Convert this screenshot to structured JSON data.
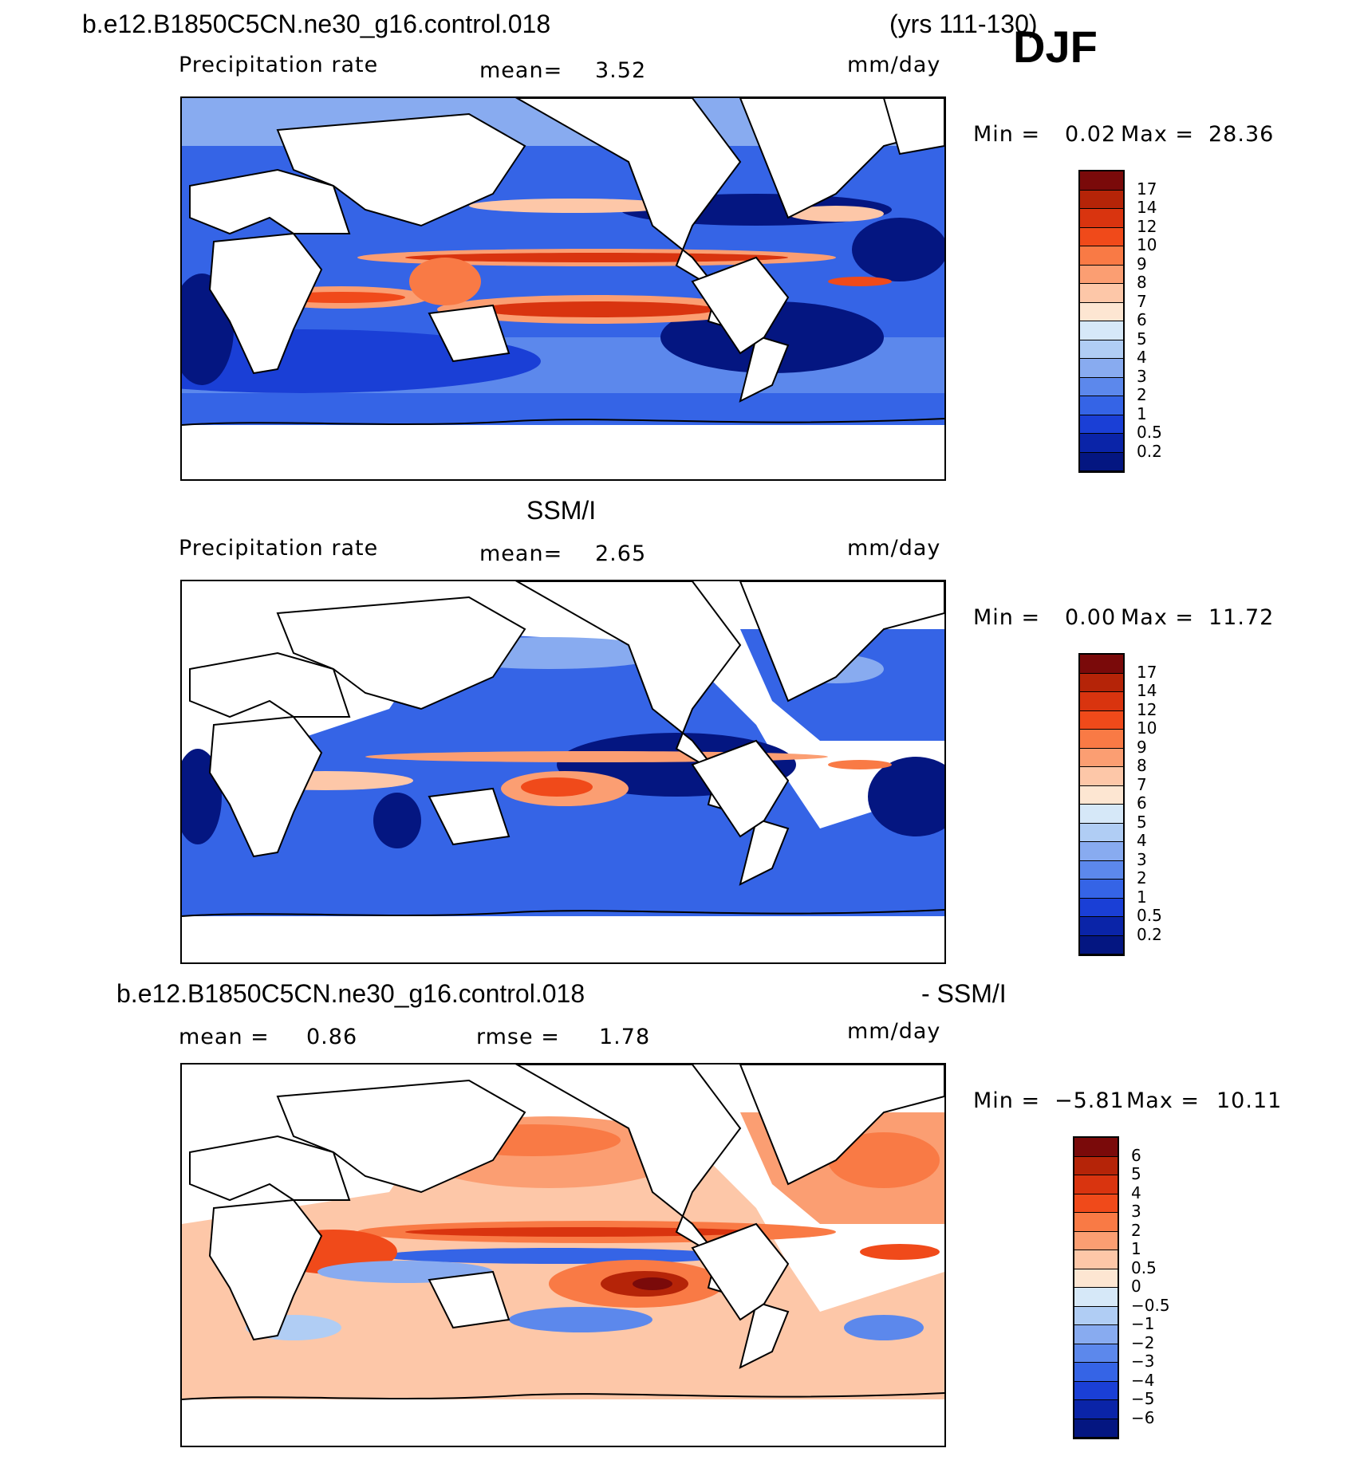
{
  "header": {
    "case_name": "b.e12.B1850C5CN.ne30_g16.control.018",
    "years": "(yrs 111-130)",
    "season": "DJF"
  },
  "panels": [
    {
      "id": "model",
      "heading": "",
      "left_label": "Precipitation  rate",
      "mid_label": "mean=",
      "mid_value": "3.52",
      "units": "mm/day",
      "min_label": "Min  =",
      "min_value": "0.02",
      "max_label": "Max  =",
      "max_value": "28.36",
      "levels": [
        "17",
        "14",
        "12",
        "10",
        "9",
        "8",
        "7",
        "6",
        "5",
        "4",
        "3",
        "2",
        "1",
        "0.5",
        "0.2"
      ]
    },
    {
      "id": "obs",
      "heading": "SSM/I",
      "left_label": "Precipitation  rate",
      "mid_label": "mean=",
      "mid_value": "2.65",
      "units": "mm/day",
      "min_label": "Min  =",
      "min_value": "0.00",
      "max_label": "Max  =",
      "max_value": "11.72",
      "levels": [
        "17",
        "14",
        "12",
        "10",
        "9",
        "8",
        "7",
        "6",
        "5",
        "4",
        "3",
        "2",
        "1",
        "0.5",
        "0.2"
      ]
    },
    {
      "id": "diff",
      "heading_left": "b.e12.B1850C5CN.ne30_g16.control.018",
      "heading_right": "- SSM/I",
      "left_label": "mean  =",
      "left_value": "0.86",
      "mid_label": "rmse  =",
      "mid_value": "1.78",
      "units": "mm/day",
      "min_label": "Min  =",
      "min_value": "−5.81",
      "max_label": "Max  =",
      "max_value": "10.11",
      "levels": [
        "6",
        "5",
        "4",
        "3",
        "2",
        "1",
        "0.5",
        "0",
        "−0.5",
        "−1",
        "−2",
        "−3",
        "−4",
        "−5",
        "−6"
      ]
    }
  ],
  "colors": {
    "precip": [
      "#7a0a0a",
      "#b52408",
      "#d9340f",
      "#f04a1a",
      "#f97a45",
      "#fb9e72",
      "#fdc7a8",
      "#fde6d2",
      "#d6e8f8",
      "#b0cdf4",
      "#88abf0",
      "#5c88ec",
      "#3564e6",
      "#1a3fd6",
      "#0a24a8",
      "#041681"
    ],
    "diff": [
      "#7a0a0a",
      "#b52408",
      "#d9340f",
      "#f04a1a",
      "#f97a45",
      "#fb9e72",
      "#fdc7a8",
      "#fde6d2",
      "#d6e8f8",
      "#b0cdf4",
      "#88abf0",
      "#5c88ec",
      "#3564e6",
      "#1a3fd6",
      "#0a24a8",
      "#041681"
    ]
  }
}
